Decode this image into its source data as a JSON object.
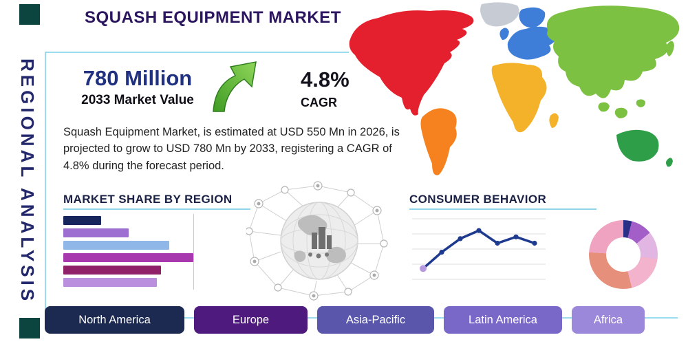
{
  "page": {
    "title": "SQUASH EQUIPMENT MARKET",
    "side_label": "REGIONAL ANALYSIS"
  },
  "highlights": {
    "market_value": "780 Million",
    "market_value_caption": "2033 Market Value",
    "cagr_value": "4.8%",
    "cagr_label": "CAGR",
    "description": "Squash Equipment Market, is estimated at USD 550 Mn in 2026, is projected to grow to USD 780 Mn by 2033, registering a CAGR of 4.8% during the forecast period."
  },
  "section_headings": {
    "market_share": "MARKET SHARE BY REGION",
    "consumer_behavior": "CONSUMER BEHAVIOR"
  },
  "region_buttons": [
    {
      "label": "North America",
      "color": "#1c2a52"
    },
    {
      "label": "Europe",
      "color": "#4f1a7e"
    },
    {
      "label": "Asia-Pacific",
      "color": "#5956ab"
    },
    {
      "label": "Latin America",
      "color": "#7a68c8"
    },
    {
      "label": "Africa",
      "color": "#9c88da"
    }
  ],
  "map": {
    "north_america": "#e5202e",
    "greenland": "#c7ccd4",
    "south_america": "#f5821f",
    "europe": "#3e7ed8",
    "africa": "#f3b229",
    "asia": "#7cc142",
    "australia": "#2f9e49"
  },
  "accent": {
    "corner_square": "#0c4440",
    "frame_line": "#9adced",
    "arrow_green_light": "#7ec850",
    "arrow_green_dark": "#3f9b24"
  },
  "chart_data": [
    {
      "type": "bar",
      "name": "market_share_by_region",
      "title": "MARKET SHARE BY REGION",
      "orientation": "horizontal",
      "categories": [
        "",
        "",
        "",
        "",
        "",
        ""
      ],
      "values": [
        27,
        47,
        76,
        93,
        70,
        67
      ],
      "xlim": [
        0,
        100
      ],
      "colors": [
        "#16265c",
        "#9d6fd0",
        "#8fb8e8",
        "#a838ae",
        "#8f2168",
        "#ba8fdd"
      ],
      "grid": false
    },
    {
      "type": "line",
      "name": "consumer_behavior_line",
      "title": "CONSUMER BEHAVIOR",
      "x": [
        1,
        2,
        3,
        4,
        5,
        6,
        7
      ],
      "values": [
        15,
        33,
        48,
        57,
        43,
        50,
        43
      ],
      "ylim": [
        0,
        70
      ],
      "line_color": "#1d3a8f",
      "first_marker_color": "#b59ae0",
      "grid": true
    },
    {
      "type": "pie",
      "name": "regional_donut",
      "donut": true,
      "slices": [
        {
          "value": 4,
          "color": "#2b2f86"
        },
        {
          "value": 10,
          "color": "#a35ec8"
        },
        {
          "value": 13,
          "color": "#e2b6e2"
        },
        {
          "value": 19,
          "color": "#f3b3cd"
        },
        {
          "value": 30,
          "color": "#e6907c"
        },
        {
          "value": 24,
          "color": "#f0a3c0"
        }
      ]
    }
  ]
}
